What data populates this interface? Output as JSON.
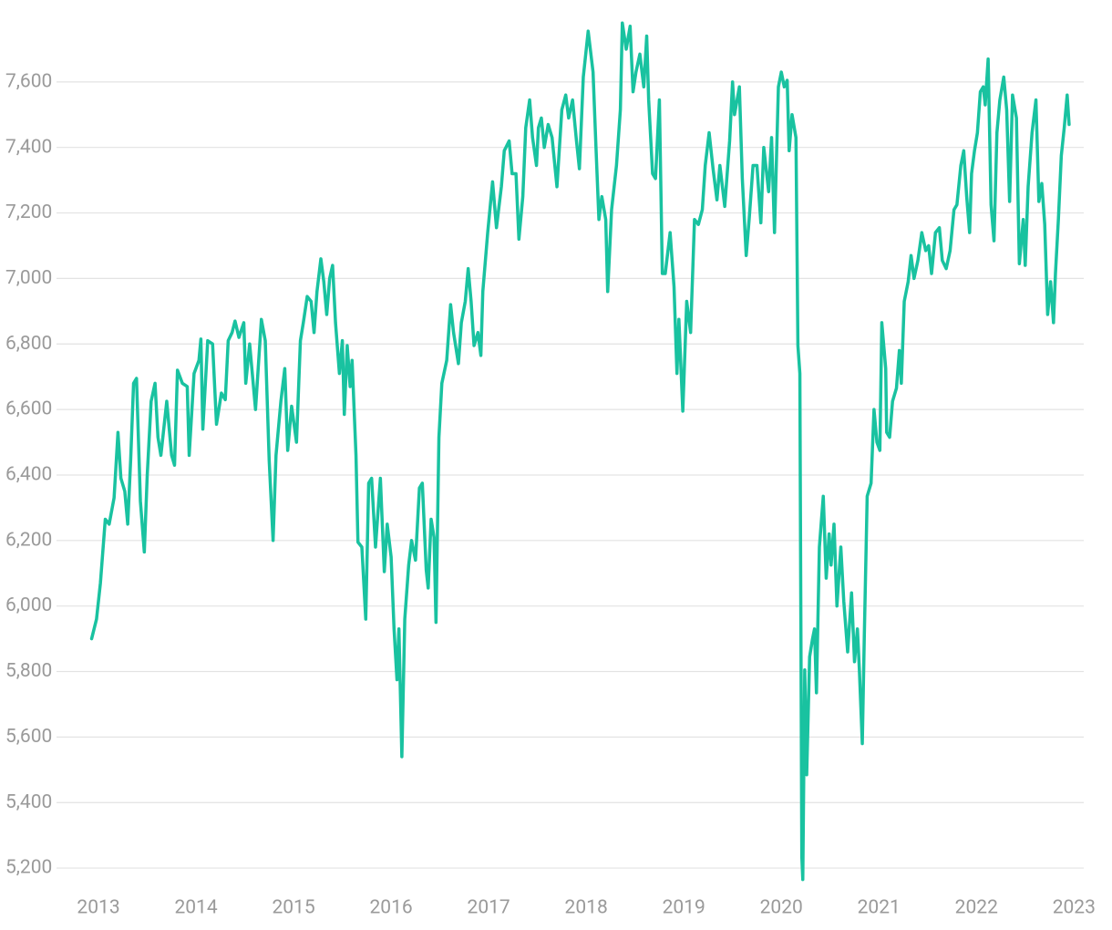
{
  "chart_data": {
    "type": "line",
    "color": "#19c2a0",
    "grid": true,
    "xlim": [
      2012.57,
      2023.1
    ],
    "xticks": [
      2013,
      2014,
      2015,
      2016,
      2017,
      2018,
      2019,
      2020,
      2021,
      2022,
      2023
    ],
    "ylim": [
      5100,
      7800
    ],
    "yticks": [
      {
        "value": 5200,
        "label": "5,200"
      },
      {
        "value": 5400,
        "label": "5,400"
      },
      {
        "value": 5600,
        "label": "5,600"
      },
      {
        "value": 5800,
        "label": "5,800"
      },
      {
        "value": 6000,
        "label": "6,000"
      },
      {
        "value": 6200,
        "label": "6,200"
      },
      {
        "value": 6400,
        "label": "6,400"
      },
      {
        "value": 6600,
        "label": "6,600"
      },
      {
        "value": 6800,
        "label": "6,800"
      },
      {
        "value": 7000,
        "label": "7,000"
      },
      {
        "value": 7200,
        "label": "7,200"
      },
      {
        "value": 7400,
        "label": "7,400"
      },
      {
        "value": 7600,
        "label": "7,600"
      }
    ],
    "x": [
      2012.93,
      2012.98,
      2013.02,
      2013.07,
      2013.11,
      2013.16,
      2013.2,
      2013.23,
      2013.27,
      2013.3,
      2013.33,
      2013.36,
      2013.39,
      2013.43,
      2013.47,
      2013.5,
      2013.54,
      2013.58,
      2013.61,
      2013.64,
      2013.7,
      2013.75,
      2013.78,
      2013.81,
      2013.86,
      2013.91,
      2013.93,
      2013.98,
      2014.03,
      2014.05,
      2014.07,
      2014.12,
      2014.17,
      2014.21,
      2014.26,
      2014.3,
      2014.33,
      2014.37,
      2014.4,
      2014.44,
      2014.49,
      2014.51,
      2014.55,
      2014.61,
      2014.67,
      2014.71,
      2014.75,
      2014.79,
      2014.82,
      2014.87,
      2014.91,
      2014.94,
      2014.98,
      2015.03,
      2015.07,
      2015.1,
      2015.14,
      2015.18,
      2015.21,
      2015.24,
      2015.28,
      2015.31,
      2015.34,
      2015.37,
      2015.4,
      2015.43,
      2015.47,
      2015.5,
      2015.52,
      2015.55,
      2015.58,
      2015.6,
      2015.64,
      2015.66,
      2015.7,
      2015.74,
      2015.77,
      2015.8,
      2015.84,
      2015.89,
      2015.93,
      2015.96,
      2016.0,
      2016.03,
      2016.06,
      2016.08,
      2016.11,
      2016.14,
      2016.18,
      2016.21,
      2016.25,
      2016.29,
      2016.32,
      2016.36,
      2016.38,
      2016.41,
      2016.44,
      2016.46,
      2016.49,
      2016.52,
      2016.57,
      2016.61,
      2016.64,
      2016.69,
      2016.72,
      2016.76,
      2016.79,
      2016.82,
      2016.85,
      2016.89,
      2016.92,
      2016.94,
      2016.99,
      2017.04,
      2017.08,
      2017.13,
      2017.16,
      2017.21,
      2017.24,
      2017.28,
      2017.31,
      2017.35,
      2017.38,
      2017.42,
      2017.45,
      2017.49,
      2017.51,
      2017.54,
      2017.57,
      2017.61,
      2017.65,
      2017.7,
      2017.75,
      2017.79,
      2017.82,
      2017.86,
      2017.9,
      2017.93,
      2017.97,
      2018.02,
      2018.07,
      2018.1,
      2018.13,
      2018.16,
      2018.2,
      2018.22,
      2018.26,
      2018.31,
      2018.35,
      2018.37,
      2018.41,
      2018.45,
      2018.48,
      2018.51,
      2018.55,
      2018.59,
      2018.62,
      2018.64,
      2018.68,
      2018.71,
      2018.75,
      2018.78,
      2018.81,
      2018.86,
      2018.9,
      2018.93,
      2018.95,
      2018.99,
      2019.03,
      2019.07,
      2019.11,
      2019.15,
      2019.19,
      2019.22,
      2019.26,
      2019.3,
      2019.34,
      2019.37,
      2019.42,
      2019.47,
      2019.5,
      2019.52,
      2019.57,
      2019.6,
      2019.64,
      2019.67,
      2019.71,
      2019.75,
      2019.79,
      2019.82,
      2019.87,
      2019.9,
      2019.93,
      2019.97,
      2020.0,
      2020.03,
      2020.06,
      2020.08,
      2020.11,
      2020.15,
      2020.17,
      2020.19,
      2020.21,
      2020.22,
      2020.24,
      2020.26,
      2020.29,
      2020.32,
      2020.34,
      2020.36,
      2020.39,
      2020.43,
      2020.46,
      2020.49,
      2020.51,
      2020.54,
      2020.57,
      2020.61,
      2020.64,
      2020.68,
      2020.72,
      2020.75,
      2020.78,
      2020.8,
      2020.83,
      2020.85,
      2020.88,
      2020.92,
      2020.95,
      2020.98,
      2021.01,
      2021.03,
      2021.07,
      2021.08,
      2021.11,
      2021.14,
      2021.18,
      2021.21,
      2021.23,
      2021.26,
      2021.3,
      2021.33,
      2021.36,
      2021.4,
      2021.44,
      2021.48,
      2021.51,
      2021.54,
      2021.58,
      2021.62,
      2021.65,
      2021.69,
      2021.73,
      2021.77,
      2021.8,
      2021.84,
      2021.87,
      2021.9,
      2021.93,
      2021.95,
      2021.98,
      2022.01,
      2022.04,
      2022.07,
      2022.09,
      2022.12,
      2022.15,
      2022.18,
      2022.21,
      2022.24,
      2022.28,
      2022.31,
      2022.34,
      2022.37,
      2022.41,
      2022.44,
      2022.48,
      2022.5,
      2022.53,
      2022.57,
      2022.61,
      2022.64,
      2022.67,
      2022.7,
      2022.73,
      2022.76,
      2022.79,
      2022.81,
      2022.84,
      2022.87,
      2022.9,
      2022.93,
      2022.95
    ],
    "values": [
      5900,
      5960,
      6070,
      6265,
      6250,
      6330,
      6530,
      6390,
      6350,
      6250,
      6445,
      6680,
      6695,
      6320,
      6165,
      6400,
      6625,
      6680,
      6515,
      6460,
      6625,
      6460,
      6430,
      6720,
      6680,
      6670,
      6460,
      6710,
      6750,
      6815,
      6540,
      6810,
      6800,
      6555,
      6650,
      6630,
      6810,
      6835,
      6870,
      6820,
      6865,
      6680,
      6800,
      6600,
      6875,
      6810,
      6445,
      6200,
      6460,
      6625,
      6725,
      6475,
      6610,
      6500,
      6810,
      6865,
      6945,
      6930,
      6835,
      6960,
      7060,
      6990,
      6890,
      7000,
      7040,
      6865,
      6710,
      6810,
      6585,
      6795,
      6670,
      6750,
      6460,
      6195,
      6180,
      5960,
      6375,
      6390,
      6180,
      6390,
      6105,
      6250,
      6150,
      5930,
      5775,
      5930,
      5540,
      5960,
      6125,
      6200,
      6140,
      6360,
      6375,
      6110,
      6055,
      6265,
      6210,
      5950,
      6515,
      6680,
      6750,
      6920,
      6835,
      6740,
      6865,
      6930,
      7030,
      6930,
      6795,
      6835,
      6765,
      6960,
      7140,
      7295,
      7155,
      7280,
      7390,
      7420,
      7320,
      7320,
      7120,
      7250,
      7460,
      7545,
      7430,
      7345,
      7460,
      7490,
      7400,
      7470,
      7430,
      7280,
      7515,
      7560,
      7490,
      7545,
      7420,
      7335,
      7615,
      7755,
      7630,
      7400,
      7180,
      7250,
      7180,
      6960,
      7210,
      7345,
      7515,
      7780,
      7700,
      7770,
      7570,
      7630,
      7685,
      7585,
      7740,
      7545,
      7320,
      7305,
      7545,
      7015,
      7015,
      7140,
      6975,
      6710,
      6875,
      6595,
      6930,
      6835,
      7180,
      7165,
      7210,
      7345,
      7445,
      7335,
      7240,
      7345,
      7220,
      7420,
      7600,
      7500,
      7585,
      7305,
      7070,
      7180,
      7345,
      7345,
      7170,
      7400,
      7265,
      7430,
      7140,
      7585,
      7630,
      7585,
      7605,
      7390,
      7500,
      7430,
      6795,
      6710,
      5235,
      5165,
      5805,
      5485,
      5845,
      5900,
      5930,
      5735,
      6180,
      6335,
      6085,
      6220,
      6125,
      6250,
      6000,
      6180,
      6015,
      5860,
      6040,
      5830,
      5930,
      5805,
      5580,
      5900,
      6335,
      6375,
      6600,
      6500,
      6475,
      6865,
      6725,
      6530,
      6515,
      6625,
      6665,
      6780,
      6680,
      6930,
      6990,
      7070,
      7000,
      7055,
      7140,
      7085,
      7100,
      7015,
      7140,
      7155,
      7055,
      7030,
      7085,
      7210,
      7225,
      7345,
      7390,
      7250,
      7140,
      7320,
      7390,
      7445,
      7570,
      7585,
      7530,
      7670,
      7225,
      7115,
      7445,
      7545,
      7615,
      7515,
      7235,
      7560,
      7490,
      7045,
      7180,
      7040,
      7280,
      7445,
      7545,
      7235,
      7290,
      7165,
      6890,
      6990,
      6865,
      7015,
      7180,
      7375,
      7460,
      7560,
      7470
    ]
  }
}
